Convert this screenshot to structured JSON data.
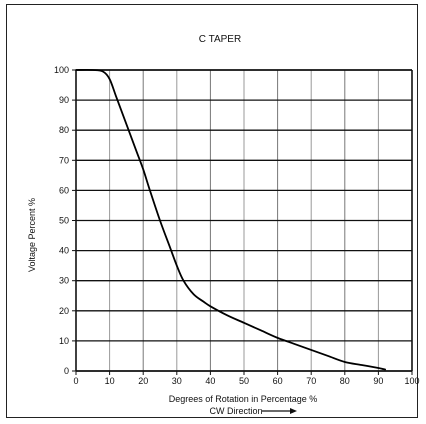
{
  "chart_data": {
    "type": "line",
    "title": "C TAPER",
    "xlabel": "Degrees of Rotation in Percentage %",
    "xlabel2": "CW Direction",
    "ylabel": "Voltage Percent %",
    "xlim": [
      0,
      100
    ],
    "ylim": [
      0,
      100
    ],
    "xticks": [
      0,
      10,
      20,
      30,
      40,
      50,
      60,
      70,
      80,
      90,
      100
    ],
    "yticks": [
      0,
      10,
      20,
      30,
      40,
      50,
      60,
      70,
      80,
      90,
      100
    ],
    "grid": true,
    "series": [
      {
        "color": "#000000",
        "x": [
          0,
          5,
          8,
          10,
          12,
          15,
          18,
          20,
          22,
          25,
          28,
          30,
          32,
          35,
          38,
          40,
          45,
          50,
          55,
          60,
          65,
          70,
          75,
          80,
          85,
          90,
          92
        ],
        "y": [
          100,
          100,
          99.5,
          97,
          91,
          82,
          73,
          67,
          60,
          50,
          41,
          35,
          30,
          25.5,
          23,
          21.5,
          18.5,
          16,
          13.5,
          11,
          9,
          7,
          5,
          3,
          2,
          1,
          0.5
        ]
      }
    ]
  }
}
